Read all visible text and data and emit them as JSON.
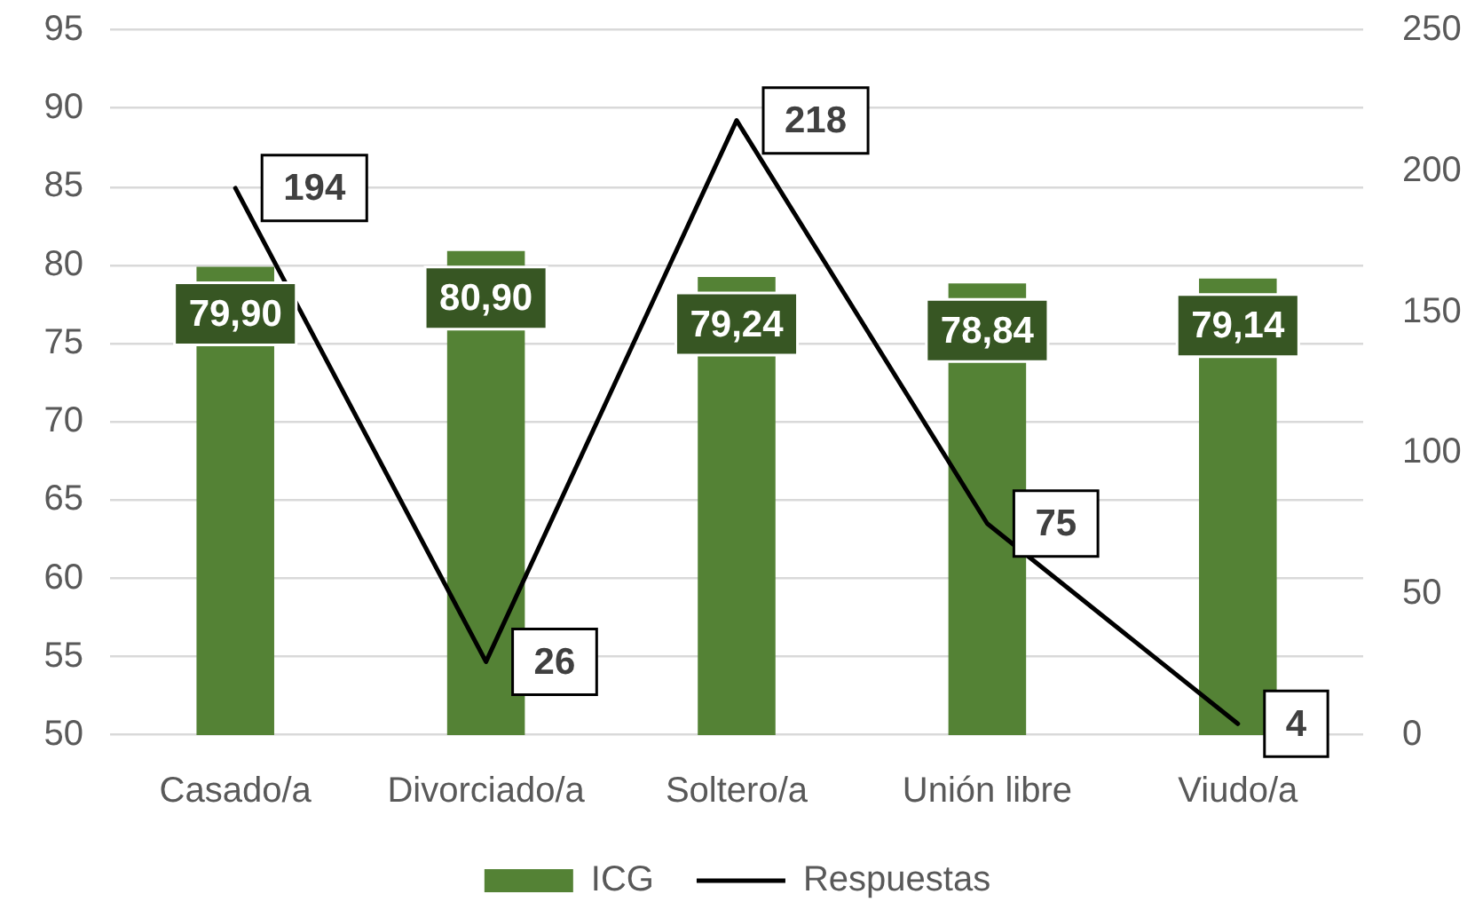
{
  "chart_data": {
    "type": "bar",
    "categories": [
      "Casado/a",
      "Divorciado/a",
      "Soltero/a",
      "Unión libre",
      "Viudo/a"
    ],
    "series": [
      {
        "name": "ICG",
        "color": "#548235",
        "values": [
          79.9,
          80.9,
          79.24,
          78.84,
          79.14
        ],
        "value_labels": [
          "79,90",
          "80,90",
          "79,24",
          "78,84",
          "79,14"
        ]
      },
      {
        "name": "Respuestas",
        "type": "line",
        "axis": "y2",
        "color": "#000000",
        "values": [
          194,
          26,
          218,
          75,
          4
        ],
        "value_labels": [
          "194",
          "26",
          "218",
          "75",
          "4"
        ]
      }
    ],
    "ylim": [
      50,
      95
    ],
    "yticks": [
      50,
      55,
      60,
      65,
      70,
      75,
      80,
      85,
      90,
      95
    ],
    "y2lim": [
      0,
      250
    ],
    "y2ticks": [
      0,
      50,
      100,
      150,
      200,
      250
    ],
    "grid": "y",
    "legend": "bottom"
  }
}
